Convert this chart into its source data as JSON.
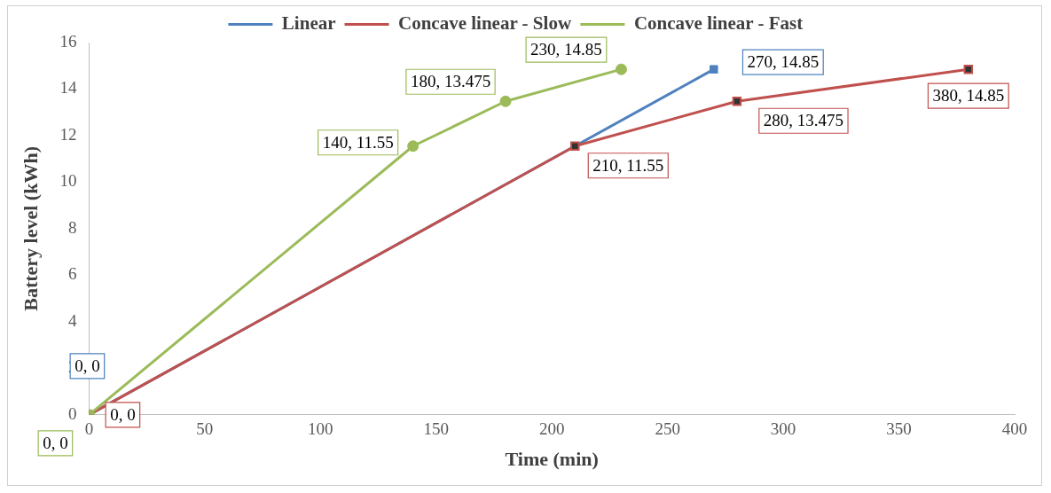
{
  "chart_data": {
    "type": "line",
    "xlabel": "Time (min)",
    "ylabel": "Battery level (kWh)",
    "xlim": [
      0,
      400
    ],
    "xticks": [
      0,
      50,
      100,
      150,
      200,
      250,
      300,
      350,
      400
    ],
    "ylim": [
      0,
      16
    ],
    "yticks": [
      0,
      2,
      4,
      6,
      8,
      10,
      12,
      14,
      16
    ],
    "grid": false,
    "legend": "top",
    "line_style": "solid",
    "series": [
      {
        "name": "Linear",
        "color": "#4f81bd",
        "marker": "square",
        "x": [
          0,
          270
        ],
        "values": [
          0,
          14.85
        ],
        "value_labels": [
          "0, 0",
          "270, 14.85"
        ]
      },
      {
        "name": "Concave linear - Slow",
        "color": "#c0504d",
        "marker": "square",
        "x": [
          0,
          210,
          280,
          380
        ],
        "values": [
          0,
          11.55,
          13.475,
          14.85
        ],
        "value_labels": [
          "0, 0",
          "210, 11.55",
          "280, 13.475",
          "380, 14.85"
        ]
      },
      {
        "name": "Concave linear - Fast",
        "color": "#9bbb59",
        "marker": "circle",
        "x": [
          0,
          140,
          180,
          230
        ],
        "values": [
          0,
          11.55,
          13.475,
          14.85
        ],
        "value_labels": [
          "0, 0",
          "140, 11.55",
          "180, 13.475",
          "230, 14.85"
        ]
      }
    ]
  }
}
